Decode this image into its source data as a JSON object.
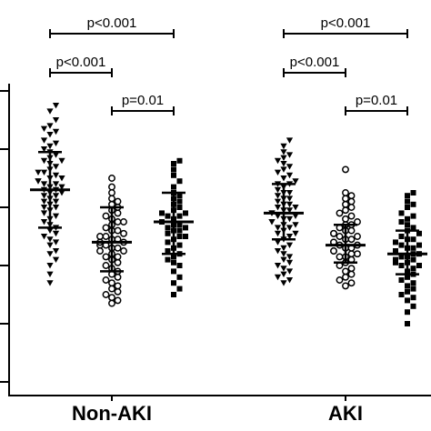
{
  "chart_data": {
    "type": "scatter",
    "title": "",
    "xlabel": "",
    "ylabel": "",
    "ylim": [
      0,
      100
    ],
    "grid": false,
    "legend": "none",
    "groups": [
      {
        "label": "Non-AKI",
        "series": [
          {
            "marker": "triangle-down",
            "mean": 66,
            "sd_upper": 79,
            "sd_lower": 53,
            "values": [
              95,
              93,
              90,
              88,
              87,
              86,
              85,
              83,
              82,
              81,
              80,
              79,
              78,
              77,
              76,
              76,
              75,
              74,
              73,
              72,
              72,
              71,
              70,
              70,
              69,
              69,
              68,
              68,
              67,
              67,
              66,
              66,
              65,
              65,
              64,
              64,
              63,
              62,
              62,
              61,
              60,
              60,
              59,
              58,
              57,
              56,
              55,
              54,
              53,
              52,
              51,
              50,
              49,
              48,
              47,
              45,
              44,
              42,
              40,
              37,
              34
            ]
          },
          {
            "marker": "circle-open",
            "mean": 48,
            "sd_upper": 60,
            "sd_lower": 38,
            "values": [
              70,
              67,
              65,
              63,
              62,
              61,
              60,
              59,
              58,
              57,
              56,
              55,
              55,
              54,
              53,
              52,
              52,
              51,
              50,
              50,
              49,
              49,
              48,
              48,
              47,
              47,
              46,
              46,
              45,
              45,
              44,
              43,
              43,
              42,
              41,
              40,
              39,
              38,
              37,
              36,
              35,
              34,
              33,
              32,
              31,
              30,
              29,
              28,
              27
            ]
          },
          {
            "marker": "square",
            "mean": 55,
            "sd_upper": 65,
            "sd_lower": 44,
            "values": [
              76,
              75,
              73,
              71,
              69,
              67,
              65,
              64,
              63,
              62,
              61,
              60,
              59,
              58,
              58,
              57,
              57,
              56,
              55,
              55,
              54,
              54,
              53,
              53,
              52,
              52,
              51,
              50,
              50,
              49,
              48,
              47,
              46,
              45,
              44,
              43,
              42,
              41,
              40,
              38,
              36,
              34,
              32,
              30
            ]
          }
        ]
      },
      {
        "label": "AKI",
        "series": [
          {
            "marker": "triangle-down",
            "mean": 58,
            "sd_upper": 68,
            "sd_lower": 49,
            "values": [
              83,
              81,
              79,
              78,
              77,
              76,
              75,
              74,
              73,
              72,
              71,
              70,
              69,
              68,
              68,
              67,
              66,
              65,
              65,
              64,
              63,
              63,
              62,
              61,
              61,
              60,
              60,
              59,
              59,
              58,
              58,
              57,
              57,
              56,
              56,
              55,
              55,
              54,
              54,
              53,
              53,
              52,
              51,
              51,
              50,
              49,
              48,
              47,
              46,
              45,
              44,
              43,
              42,
              41,
              40,
              39,
              38,
              37,
              36,
              35,
              34
            ]
          },
          {
            "marker": "circle-open",
            "mean": 47,
            "sd_upper": 54,
            "sd_lower": 41,
            "values": [
              73,
              65,
              64,
              63,
              62,
              61,
              60,
              59,
              58,
              57,
              56,
              55,
              54,
              54,
              53,
              52,
              52,
              51,
              51,
              50,
              50,
              49,
              49,
              48,
              48,
              47,
              47,
              46,
              46,
              45,
              45,
              44,
              44,
              43,
              43,
              42,
              41,
              40,
              39,
              38,
              37,
              36,
              35,
              34,
              33
            ]
          },
          {
            "marker": "square",
            "mean": 44,
            "sd_upper": 52,
            "sd_lower": 37,
            "values": [
              65,
              64,
              62,
              61,
              60,
              58,
              57,
              56,
              55,
              54,
              53,
              52,
              51,
              50,
              49,
              49,
              48,
              47,
              47,
              46,
              46,
              45,
              45,
              44,
              44,
              43,
              43,
              42,
              42,
              41,
              41,
              40,
              40,
              39,
              38,
              37,
              36,
              35,
              34,
              33,
              32,
              31,
              30,
              29,
              28,
              26,
              24,
              20
            ]
          }
        ]
      }
    ],
    "comparisons": [
      {
        "group": 0,
        "from": 0,
        "to": 2,
        "label": "p<0.001",
        "tier": 2
      },
      {
        "group": 0,
        "from": 0,
        "to": 1,
        "label": "p<0.001",
        "tier": 1
      },
      {
        "group": 0,
        "from": 1,
        "to": 2,
        "label": "p=0.01",
        "tier": 0
      },
      {
        "group": 1,
        "from": 0,
        "to": 2,
        "label": "p<0.001",
        "tier": 2
      },
      {
        "group": 1,
        "from": 0,
        "to": 1,
        "label": "p<0.001",
        "tier": 1
      },
      {
        "group": 1,
        "from": 1,
        "to": 2,
        "label": "p=0.01",
        "tier": 0
      }
    ],
    "colors": {
      "marker": "#000000",
      "axis": "#000000"
    }
  }
}
